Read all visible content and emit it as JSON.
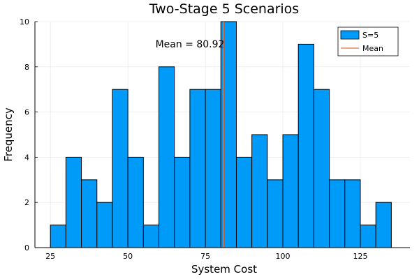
{
  "chart_data": {
    "type": "bar",
    "title": "Two-Stage 5 Scenarios",
    "xlabel": "System Cost",
    "ylabel": "Frequency",
    "xlim": [
      20,
      141
    ],
    "ylim": [
      0,
      10
    ],
    "xticks": [
      25,
      50,
      75,
      100,
      125
    ],
    "yticks": [
      0,
      2,
      4,
      6,
      8,
      10
    ],
    "grid": true,
    "legend_position": "top-right",
    "bin_edges": [
      25,
      30,
      35,
      40,
      45,
      50,
      55,
      60,
      65,
      70,
      75,
      80,
      85,
      90,
      95,
      100,
      105,
      110,
      115,
      120,
      125,
      130,
      135
    ],
    "series": [
      {
        "name": "S=5",
        "color": "#009af9",
        "values": [
          1,
          4,
          3,
          2,
          7,
          4,
          1,
          8,
          4,
          7,
          7,
          10,
          4,
          5,
          3,
          5,
          9,
          7,
          3,
          3,
          1,
          2
        ]
      }
    ],
    "mean": {
      "name": "Mean",
      "value": 80.92,
      "color": "#e26f46",
      "label": "Mean = 80.92"
    }
  }
}
